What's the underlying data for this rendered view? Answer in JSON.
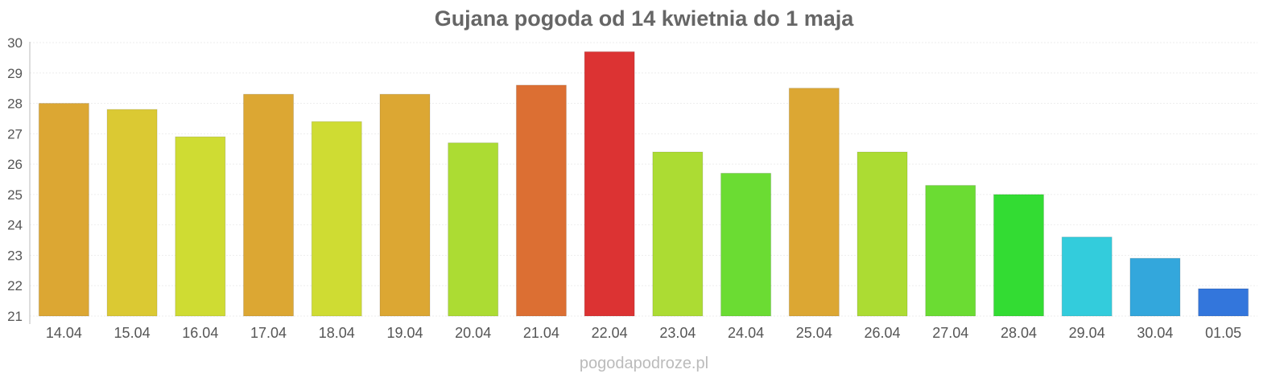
{
  "chart_data": {
    "type": "bar",
    "title": "Gujana pogoda od 14 kwietnia do 1 maja",
    "xlabel": "",
    "ylabel": "",
    "ylim": [
      21,
      30
    ],
    "yticks": [
      21,
      22,
      23,
      24,
      25,
      26,
      27,
      28,
      29,
      30
    ],
    "grid": true,
    "categories": [
      "14.04",
      "15.04",
      "16.04",
      "17.04",
      "18.04",
      "19.04",
      "20.04",
      "21.04",
      "22.04",
      "23.04",
      "24.04",
      "25.04",
      "26.04",
      "27.04",
      "28.04",
      "29.04",
      "30.04",
      "01.05"
    ],
    "values": [
      28.0,
      27.8,
      26.9,
      28.3,
      27.4,
      28.3,
      26.7,
      28.6,
      29.7,
      26.4,
      25.7,
      28.5,
      26.4,
      25.3,
      25.0,
      23.6,
      22.9,
      21.9
    ],
    "colors": [
      "#dca733",
      "#dbc933",
      "#cfdc33",
      "#dca733",
      "#cfdc33",
      "#dca733",
      "#acdc33",
      "#dc6f33",
      "#dc3333",
      "#acdc33",
      "#6bdc33",
      "#dca733",
      "#acdc33",
      "#6bdc33",
      "#33dc33",
      "#33ccdc",
      "#33a7dc",
      "#3376dc"
    ]
  },
  "footer": "pogodapodroze.pl"
}
